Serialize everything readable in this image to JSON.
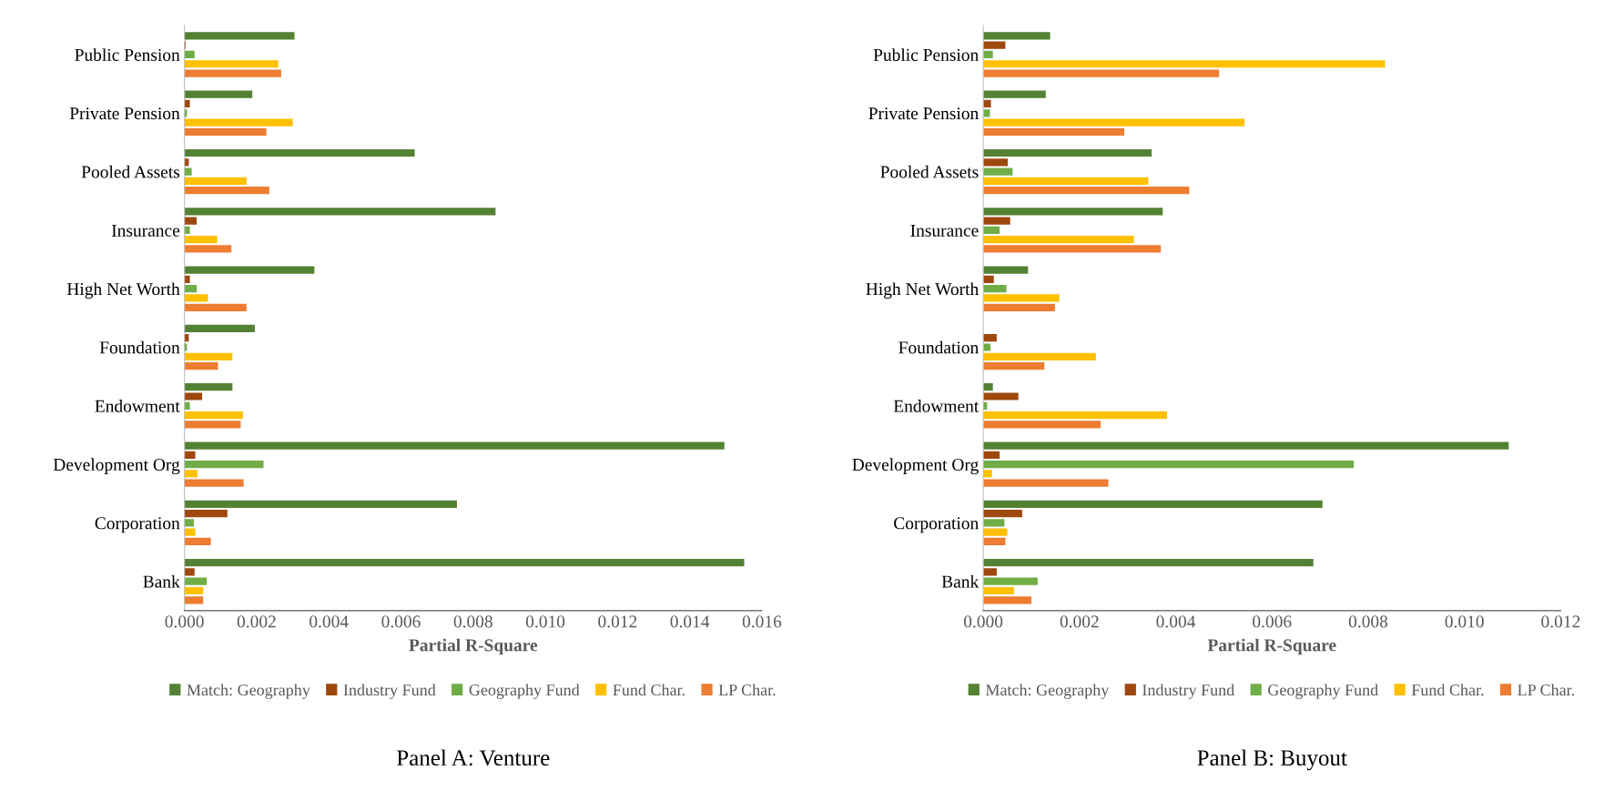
{
  "chart_data": [
    {
      "type": "bar",
      "orientation": "horizontal",
      "title": "Panel A: Venture",
      "xlabel": "Partial R-Square",
      "legend": "bottom",
      "grid": false,
      "categories": [
        "Public Pension",
        "Private Pension",
        "Pooled Assets",
        "Insurance",
        "High Net Worth",
        "Foundation",
        "Endowment",
        "Development Org",
        "Corporation",
        "Bank"
      ],
      "xlim": [
        0,
        0.016
      ],
      "xticks": [
        {
          "value": 0,
          "label": "0.000"
        },
        {
          "value": 0.002,
          "label": "0.002"
        },
        {
          "value": 0.004,
          "label": "0.004"
        },
        {
          "value": 0.006,
          "label": "0.006"
        },
        {
          "value": 0.008,
          "label": "0.008"
        },
        {
          "value": 0.01,
          "label": "0.010"
        },
        {
          "value": 0.012,
          "label": "0.012"
        },
        {
          "value": 0.014,
          "label": "0.014"
        },
        {
          "value": 0.016,
          "label": "0.016"
        }
      ],
      "series": [
        {
          "name": "Match: Geography",
          "color": "#548235",
          "values": [
            0.00305,
            0.00188,
            0.00638,
            0.00862,
            0.0036,
            0.00195,
            0.00133,
            0.01496,
            0.00755,
            0.01551
          ]
        },
        {
          "name": "Industry Fund",
          "color": "#9e480e",
          "values": [
            3e-05,
            0.00015,
            0.00012,
            0.00034,
            0.00015,
            0.00012,
            0.00049,
            0.0003,
            0.00119,
            0.00028
          ]
        },
        {
          "name": "Geography Fund",
          "color": "#70ad47",
          "values": [
            0.00028,
            7e-05,
            0.0002,
            0.00015,
            0.00034,
            7e-05,
            0.00015,
            0.00219,
            0.00026,
            0.00062
          ]
        },
        {
          "name": "Fund Char.",
          "color": "#ffc000",
          "values": [
            0.0026,
            0.003,
            0.00172,
            0.00091,
            0.00065,
            0.00133,
            0.00162,
            0.00036,
            0.0003,
            0.00052
          ]
        },
        {
          "name": "LP Char.",
          "color": "#ed7d31",
          "values": [
            0.00268,
            0.00227,
            0.00235,
            0.0013,
            0.00172,
            0.00093,
            0.00156,
            0.00164,
            0.00073,
            0.00052
          ]
        }
      ]
    },
    {
      "type": "bar",
      "orientation": "horizontal",
      "title": "Panel B: Buyout",
      "xlabel": "Partial R-Square",
      "legend": "bottom",
      "grid": false,
      "categories": [
        "Public Pension",
        "Private Pension",
        "Pooled Assets",
        "Insurance",
        "High Net Worth",
        "Foundation",
        "Endowment",
        "Development Org",
        "Corporation",
        "Bank"
      ],
      "xlim": [
        0,
        0.012
      ],
      "xticks": [
        {
          "value": 0,
          "label": "0.000"
        },
        {
          "value": 0.002,
          "label": "0.002"
        },
        {
          "value": 0.004,
          "label": "0.004"
        },
        {
          "value": 0.006,
          "label": "0.006"
        },
        {
          "value": 0.008,
          "label": "0.008"
        },
        {
          "value": 0.01,
          "label": "0.010"
        },
        {
          "value": 0.012,
          "label": "0.012"
        }
      ],
      "series": [
        {
          "name": "Match: Geography",
          "color": "#548235",
          "values": [
            0.00139,
            0.0013,
            0.0035,
            0.00373,
            0.00093,
            0,
            0.0002,
            0.01092,
            0.00705,
            0.00686
          ]
        },
        {
          "name": "Industry Fund",
          "color": "#9e480e",
          "values": [
            0.00046,
            0.00016,
            0.00051,
            0.00056,
            0.00022,
            0.00028,
            0.00073,
            0.00034,
            0.00081,
            0.00028
          ]
        },
        {
          "name": "Geography Fund",
          "color": "#70ad47",
          "values": [
            0.0002,
            0.00014,
            0.00061,
            0.00034,
            0.00048,
            0.00015,
            8e-05,
            0.0077,
            0.00044,
            0.00113
          ]
        },
        {
          "name": "Fund Char.",
          "color": "#ffc000",
          "values": [
            0.00835,
            0.00543,
            0.00343,
            0.00313,
            0.00158,
            0.00234,
            0.00382,
            0.00018,
            0.0005,
            0.00064
          ]
        },
        {
          "name": "LP Char.",
          "color": "#ed7d31",
          "values": [
            0.0049,
            0.00293,
            0.00428,
            0.00369,
            0.00149,
            0.00127,
            0.00244,
            0.0026,
            0.00046,
            0.001
          ]
        }
      ]
    }
  ]
}
